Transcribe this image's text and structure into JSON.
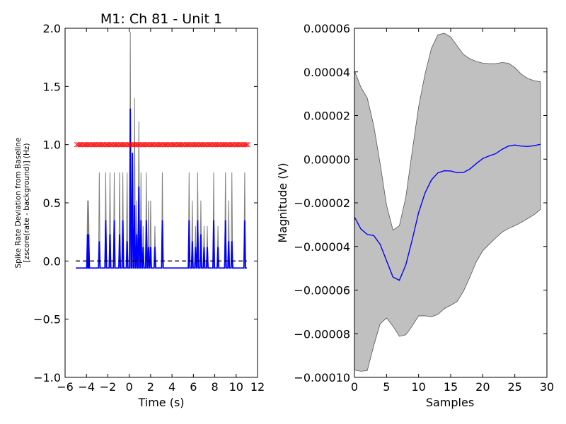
{
  "chart_data": [
    {
      "type": "line",
      "title": "M1: Ch 81 - Unit 1",
      "xlabel": "Time (s)",
      "ylabel": "Spike Rate Deviation from Baseline",
      "ylabel2": "[zscore(rate - background)] (Hz)",
      "xlim": [
        -6,
        12
      ],
      "ylim": [
        -1.0,
        2.0
      ],
      "xticks": [
        -6,
        -4,
        -2,
        0,
        2,
        4,
        6,
        8,
        10,
        12
      ],
      "xtick_labels": [
        "−6",
        "−4",
        "−2",
        "0",
        "2",
        "4",
        "6",
        "8",
        "10",
        "12"
      ],
      "yticks": [
        -1.0,
        -0.5,
        0.0,
        0.5,
        1.0,
        1.5,
        2.0
      ],
      "ytick_labels": [
        "−1.0",
        "−0.5",
        "0.0",
        "0.5",
        "1.0",
        "1.5",
        "2.0"
      ],
      "baseline": -0.06,
      "series": [
        {
          "style": "upper-bound",
          "color": "#808080",
          "spikes": [
            [
              -3.9,
              0.52
            ],
            [
              -3.8,
              0.52
            ],
            [
              -2.8,
              0.76
            ],
            [
              -2.2,
              0.76
            ],
            [
              -1.8,
              0.76
            ],
            [
              -1.4,
              0.76
            ],
            [
              -0.9,
              0.76
            ],
            [
              -0.6,
              0.76
            ],
            [
              -0.2,
              0.76
            ],
            [
              0.1,
              1.97
            ],
            [
              0.3,
              0.76
            ],
            [
              0.5,
              1.4
            ],
            [
              0.7,
              0.52
            ],
            [
              0.9,
              1.2
            ],
            [
              1.1,
              0.76
            ],
            [
              1.3,
              0.3
            ],
            [
              1.6,
              0.76
            ],
            [
              1.8,
              0.52
            ],
            [
              2.0,
              0.52
            ],
            [
              2.4,
              0.3
            ],
            [
              3.1,
              0.76
            ],
            [
              5.6,
              0.76
            ],
            [
              5.9,
              0.52
            ],
            [
              6.2,
              0.3
            ],
            [
              6.4,
              0.76
            ],
            [
              6.7,
              0.52
            ],
            [
              7.0,
              0.3
            ],
            [
              7.3,
              0.3
            ],
            [
              7.9,
              0.76
            ],
            [
              8.3,
              0.3
            ],
            [
              9.0,
              0.76
            ],
            [
              9.3,
              0.52
            ],
            [
              9.6,
              0.76
            ],
            [
              10.8,
              0.76
            ]
          ]
        },
        {
          "style": "mean",
          "color": "#0000ff",
          "spikes": [
            [
              -3.9,
              0.23
            ],
            [
              -3.8,
              0.23
            ],
            [
              -2.8,
              0.17
            ],
            [
              -2.2,
              0.35
            ],
            [
              -1.8,
              0.23
            ],
            [
              -1.4,
              0.35
            ],
            [
              -0.9,
              0.23
            ],
            [
              -0.6,
              0.35
            ],
            [
              -0.2,
              0.17
            ],
            [
              0.1,
              1.31
            ],
            [
              0.3,
              0.93
            ],
            [
              0.5,
              0.48
            ],
            [
              0.7,
              0.23
            ],
            [
              0.9,
              0.64
            ],
            [
              1.1,
              0.35
            ],
            [
              1.3,
              0.12
            ],
            [
              1.6,
              0.35
            ],
            [
              1.8,
              0.12
            ],
            [
              2.0,
              0.12
            ],
            [
              2.4,
              0.12
            ],
            [
              3.1,
              0.35
            ],
            [
              5.6,
              0.35
            ],
            [
              5.9,
              0.17
            ],
            [
              6.2,
              0.12
            ],
            [
              6.4,
              0.35
            ],
            [
              6.7,
              0.23
            ],
            [
              7.0,
              0.12
            ],
            [
              7.3,
              0.12
            ],
            [
              7.9,
              0.35
            ],
            [
              8.3,
              0.12
            ],
            [
              9.0,
              0.35
            ],
            [
              9.3,
              0.17
            ],
            [
              9.6,
              0.17
            ],
            [
              10.8,
              0.35
            ]
          ]
        },
        {
          "style": "markers",
          "marker": "x",
          "color": "#ff0000",
          "y": 1.0,
          "x_start": -4.9,
          "x_end": 11.1,
          "count": 110
        }
      ],
      "reference_line": {
        "y": 0.0,
        "x_start": -5,
        "x_end": 11,
        "style": "dashed",
        "color": "#000000"
      }
    },
    {
      "type": "area",
      "title": "",
      "xlabel": "Samples",
      "ylabel": "Magnitude (V)",
      "xlim": [
        0,
        30
      ],
      "ylim": [
        -0.0001,
        6e-05
      ],
      "xticks": [
        0,
        5,
        10,
        15,
        20,
        25,
        30
      ],
      "xtick_labels": [
        "0",
        "5",
        "10",
        "15",
        "20",
        "25",
        "30"
      ],
      "yticks": [
        -0.0001,
        -8e-05,
        -6e-05,
        -4e-05,
        -2e-05,
        0.0,
        2e-05,
        4e-05,
        6e-05
      ],
      "ytick_labels": [
        "−0.00010",
        "−0.00008",
        "−0.00006",
        "−0.00004",
        "−0.00002",
        "0.00000",
        "0.00002",
        "0.00004",
        "0.00006"
      ],
      "x": [
        0,
        1,
        2,
        3,
        4,
        5,
        6,
        7,
        8,
        9,
        10,
        11,
        12,
        13,
        14,
        15,
        16,
        17,
        18,
        19,
        20,
        21,
        22,
        23,
        24,
        25,
        26,
        27,
        28,
        29
      ],
      "mean": [
        -2.65e-05,
        -3.2e-05,
        -3.45e-05,
        -3.5e-05,
        -3.9e-05,
        -4.65e-05,
        -5.4e-05,
        -5.55e-05,
        -4.85e-05,
        -3.7e-05,
        -2.45e-05,
        -1.55e-05,
        -9.5e-06,
        -6.3e-06,
        -5.3e-06,
        -5.4e-06,
        -6.2e-06,
        -6.1e-06,
        -4.5e-06,
        -2e-06,
        3e-07,
        1.5e-06,
        2.5e-06,
        4.5e-06,
        6e-06,
        6.5e-06,
        6e-06,
        5.8e-06,
        6.2e-06,
        6.8e-06
      ],
      "upper": [
        4.05e-05,
        3.3e-05,
        2.8e-05,
        1.55e-05,
        -2e-06,
        -2.1e-05,
        -3.25e-05,
        -3.05e-05,
        -1.75e-05,
        3.5e-06,
        2.4e-05,
        3.9e-05,
        5.08e-05,
        5.7e-05,
        5.77e-05,
        5.6e-05,
        5.2e-05,
        4.8e-05,
        4.6e-05,
        4.48e-05,
        4.4e-05,
        4.38e-05,
        4.38e-05,
        4.43e-05,
        4.4e-05,
        4.2e-05,
        3.9e-05,
        3.7e-05,
        3.6e-05,
        3.55e-05
      ],
      "lower": [
        -9.66e-05,
        -9.72e-05,
        -9.69e-05,
        -8.55e-05,
        -7.55e-05,
        -7.28e-05,
        -7.65e-05,
        -8.12e-05,
        -8.05e-05,
        -7.65e-05,
        -7.18e-05,
        -7.18e-05,
        -7.22e-05,
        -7.12e-05,
        -6.85e-05,
        -6.7e-05,
        -6.53e-05,
        -6.05e-05,
        -5.4e-05,
        -4.7e-05,
        -4.2e-05,
        -3.9e-05,
        -3.62e-05,
        -3.35e-05,
        -3.18e-05,
        -3.05e-05,
        -2.9e-05,
        -2.72e-05,
        -2.55e-05,
        -2.3e-05
      ],
      "colors": {
        "mean": "#0000ff",
        "band": "#c0c0c0",
        "band_edge": "#555555"
      }
    }
  ]
}
